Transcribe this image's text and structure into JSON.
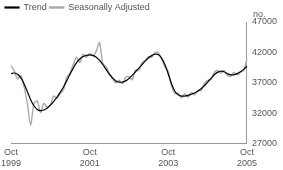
{
  "chart_data": {
    "type": "line",
    "ylabel": "no.",
    "categories": [
      "Oct 1999",
      null,
      null,
      null,
      null,
      null,
      null,
      null,
      null,
      null,
      null,
      null,
      null,
      null,
      null,
      null,
      null,
      null,
      null,
      null,
      null,
      null,
      null,
      null,
      "Oct 2001",
      null,
      null,
      null,
      null,
      null,
      null,
      null,
      null,
      null,
      null,
      null,
      null,
      null,
      null,
      null,
      null,
      null,
      null,
      null,
      null,
      null,
      null,
      null,
      "Oct 2003",
      null,
      null,
      null,
      null,
      null,
      null,
      null,
      null,
      null,
      null,
      null,
      null,
      null,
      null,
      null,
      null,
      null,
      null,
      null,
      null,
      null,
      null,
      null,
      "Oct 2005"
    ],
    "series": [
      {
        "name": "Trend",
        "color": "#000000",
        "values": [
          38500,
          38600,
          38400,
          37800,
          36800,
          35500,
          34200,
          33200,
          32600,
          32400,
          32500,
          32800,
          33300,
          33900,
          34600,
          35400,
          36300,
          37300,
          38400,
          39400,
          40300,
          40900,
          41300,
          41500,
          41600,
          41500,
          41200,
          40700,
          40000,
          39200,
          38400,
          37800,
          37300,
          37100,
          37100,
          37300,
          37700,
          38200,
          38800,
          39400,
          40000,
          40600,
          41100,
          41500,
          41700,
          41600,
          41000,
          39900,
          38400,
          36800,
          35600,
          35000,
          34800,
          34800,
          34900,
          35100,
          35300,
          35600,
          36000,
          36500,
          37100,
          37700,
          38300,
          38700,
          38900,
          38800,
          38500,
          38300,
          38300,
          38500,
          38800,
          39200,
          39700
        ]
      },
      {
        "name": "Seasonally Adjusted",
        "color": "#aaaaaa",
        "values": [
          39800,
          38900,
          37600,
          38200,
          36300,
          33500,
          30000,
          33600,
          34000,
          32100,
          33600,
          33000,
          33300,
          34800,
          34400,
          35200,
          35800,
          37900,
          38600,
          40000,
          41200,
          40300,
          41700,
          41200,
          41800,
          41400,
          42200,
          43600,
          40200,
          39600,
          38500,
          37600,
          37000,
          37400,
          36800,
          37900,
          38000,
          37500,
          39100,
          39000,
          40300,
          40700,
          41300,
          41200,
          42000,
          41900,
          40800,
          39600,
          38800,
          36500,
          35200,
          35300,
          34500,
          35200,
          34600,
          35400,
          35000,
          35800,
          35700,
          36900,
          37400,
          37500,
          38700,
          39000,
          38600,
          39000,
          38200,
          38100,
          38700,
          38300,
          38700,
          39000,
          41000
        ]
      }
    ],
    "ylim": [
      27000,
      47000
    ],
    "yticks": [
      27000,
      32000,
      37000,
      42000,
      47000
    ],
    "grid": false,
    "legend": "upper left"
  }
}
